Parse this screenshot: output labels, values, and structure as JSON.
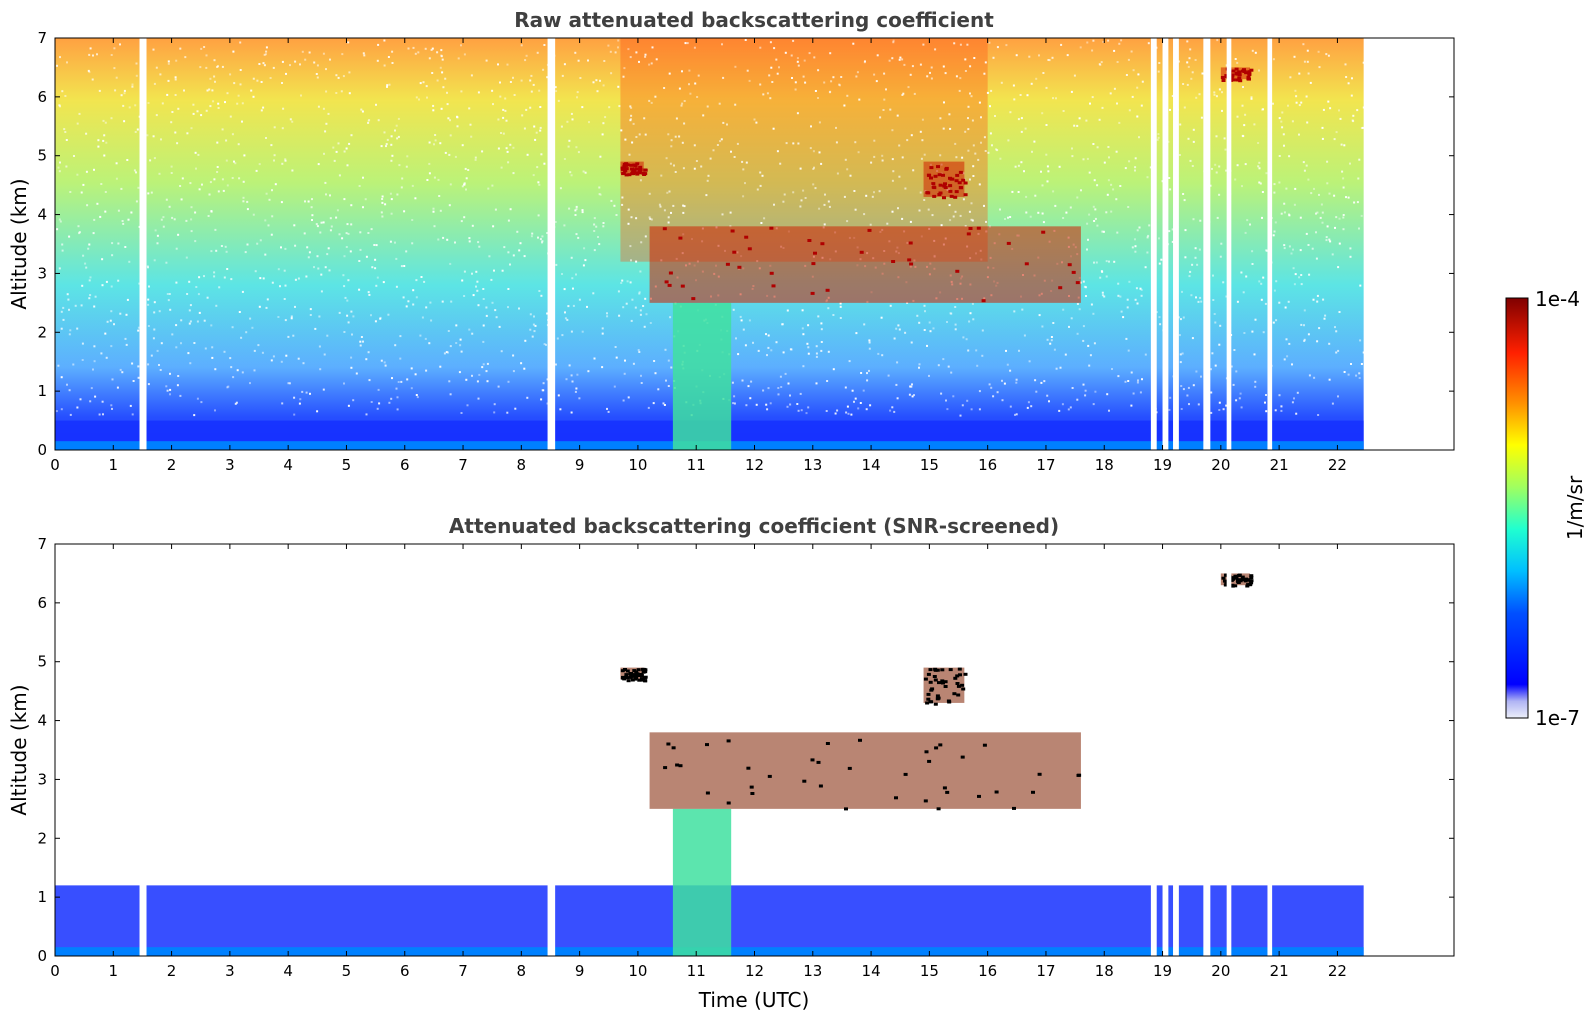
{
  "chart_data": [
    {
      "type": "heatmap",
      "title": "Raw attenuated backscattering coefficient",
      "xlabel": "",
      "ylabel": "Altitude (km)",
      "xlim": [
        0,
        24
      ],
      "ylim": [
        0,
        7
      ],
      "x_ticks": [
        "0",
        "1",
        "2",
        "3",
        "4",
        "5",
        "6",
        "7",
        "8",
        "9",
        "10",
        "11",
        "12",
        "13",
        "14",
        "15",
        "16",
        "17",
        "18",
        "19",
        "20",
        "21",
        "22"
      ],
      "y_ticks": [
        "0",
        "1",
        "2",
        "3",
        "4",
        "5",
        "6",
        "7"
      ],
      "data_extent_time_utc": [
        0,
        22.45
      ],
      "missing_time_gaps_utc": [
        [
          1.45,
          1.57
        ],
        [
          8.45,
          8.58
        ],
        [
          18.8,
          18.9
        ],
        [
          19.0,
          19.1
        ],
        [
          19.18,
          19.28
        ],
        [
          19.7,
          19.82
        ],
        [
          20.1,
          20.18
        ],
        [
          20.8,
          20.88
        ]
      ],
      "colormap": "jet",
      "scale": "log",
      "features": [
        {
          "name": "boundary-layer aerosol",
          "time": [
            0,
            22.45
          ],
          "altitude_km": [
            0,
            0.5
          ],
          "level": "low"
        },
        {
          "name": "precipitation shafts",
          "time": [
            10.6,
            11.6
          ],
          "altitude_km": [
            0,
            2.5
          ],
          "level": "medium"
        },
        {
          "name": "mid-level cloud",
          "time": [
            10.2,
            17.6
          ],
          "altitude_km": [
            2.5,
            3.8
          ],
          "level": "high"
        },
        {
          "name": "high cloud",
          "time": [
            9.7,
            10.1
          ],
          "altitude_km": [
            4.7,
            4.9
          ],
          "level": "high"
        },
        {
          "name": "high cloud",
          "time": [
            14.9,
            15.6
          ],
          "altitude_km": [
            4.3,
            4.9
          ],
          "level": "high"
        },
        {
          "name": "high cloud",
          "time": [
            20.0,
            20.5
          ],
          "altitude_km": [
            6.3,
            6.5
          ],
          "level": "high"
        },
        {
          "name": "noise",
          "time": [
            0,
            22.45
          ],
          "altitude_km": [
            1,
            7
          ],
          "level": "noisy"
        }
      ]
    },
    {
      "type": "heatmap",
      "title": "Attenuated backscattering coefficient (SNR-screened)",
      "xlabel": "Time (UTC)",
      "ylabel": "Altitude (km)",
      "xlim": [
        0,
        24
      ],
      "ylim": [
        0,
        7
      ],
      "x_ticks": [
        "0",
        "1",
        "2",
        "3",
        "4",
        "5",
        "6",
        "7",
        "8",
        "9",
        "10",
        "11",
        "12",
        "13",
        "14",
        "15",
        "16",
        "17",
        "18",
        "19",
        "20",
        "21",
        "22"
      ],
      "y_ticks": [
        "0",
        "1",
        "2",
        "3",
        "4",
        "5",
        "6",
        "7"
      ],
      "data_extent_time_utc": [
        0,
        22.45
      ],
      "colormap": "jet",
      "scale": "log",
      "features": [
        {
          "name": "boundary-layer aerosol",
          "time": [
            0,
            22.45
          ],
          "altitude_km": [
            0,
            1.2
          ],
          "level": "low"
        },
        {
          "name": "precipitation shafts",
          "time": [
            10.6,
            11.6
          ],
          "altitude_km": [
            0,
            2.5
          ],
          "level": "medium"
        },
        {
          "name": "mid-level cloud",
          "time": [
            10.2,
            17.6
          ],
          "altitude_km": [
            2.5,
            3.8
          ],
          "level": "high"
        },
        {
          "name": "high cloud",
          "time": [
            9.7,
            10.1
          ],
          "altitude_km": [
            4.7,
            4.9
          ],
          "level": "high"
        },
        {
          "name": "high cloud",
          "time": [
            14.9,
            15.6
          ],
          "altitude_km": [
            4.3,
            4.9
          ],
          "level": "high"
        },
        {
          "name": "high cloud",
          "time": [
            20.0,
            20.5
          ],
          "altitude_km": [
            6.3,
            6.5
          ],
          "level": "high"
        }
      ]
    }
  ],
  "colorbar": {
    "label": "1/m/sr",
    "max_label": "1e-4",
    "min_label": "1e-7",
    "range": [
      1e-07,
      0.0001
    ],
    "colormap": "jet"
  },
  "colors": {
    "jet_low": "#00007f",
    "jet_mid": "#7fff7f",
    "jet_high": "#7f0000",
    "background": "#ffffff"
  }
}
